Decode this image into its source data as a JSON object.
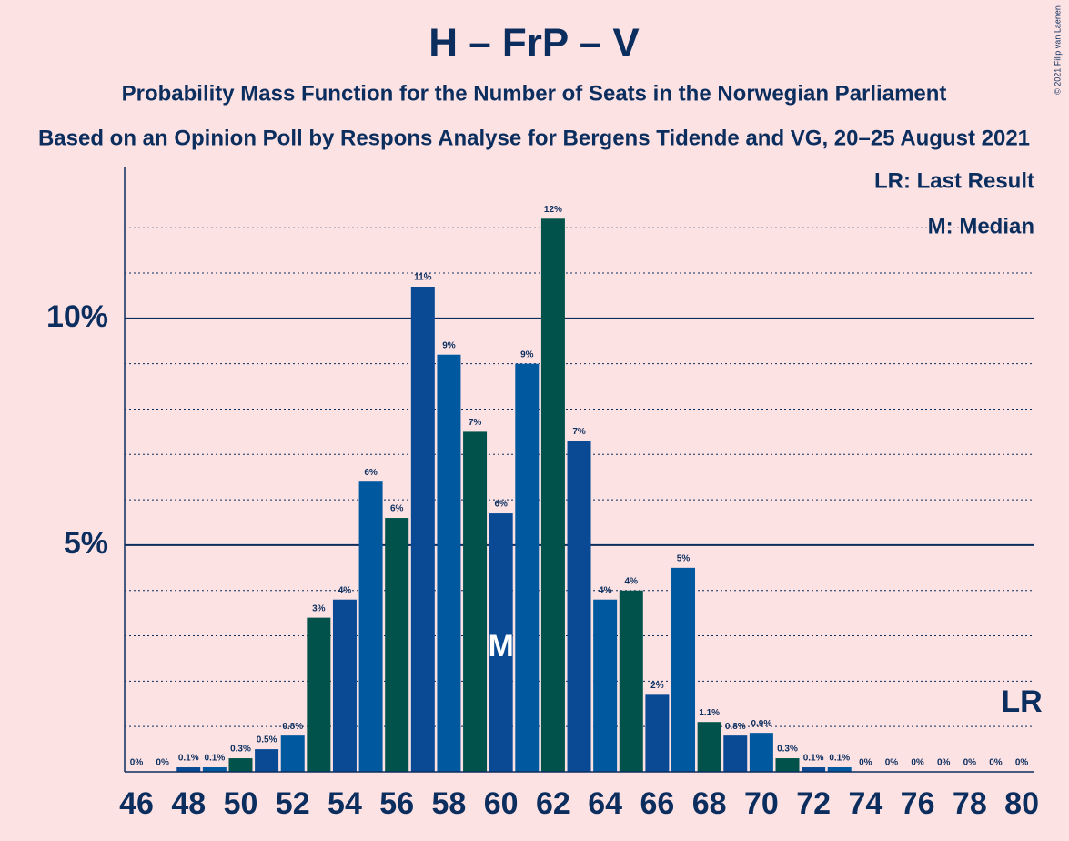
{
  "chart_data": {
    "type": "bar",
    "title": "H – FrP – V",
    "subtitle": "Probability Mass Function for the Number of Seats in the Norwegian Parliament",
    "subtitle2": "Based on an Opinion Poll by Respons Analyse for Bergens Tidende and VG, 20–25 August 2021",
    "copyright": "© 2021 Filip van Laenen",
    "legend": [
      "LR: Last Result",
      "M: Median"
    ],
    "categories": [
      46,
      null,
      48,
      null,
      50,
      null,
      52,
      null,
      54,
      null,
      56,
      null,
      58,
      null,
      60,
      null,
      62,
      null,
      64,
      null,
      66,
      null,
      68,
      null,
      70,
      null,
      72,
      null,
      74,
      null,
      76,
      null,
      78,
      null,
      80
    ],
    "values": [
      0,
      0,
      0.1,
      0.1,
      0.3,
      0.5,
      0.8,
      3.4,
      3.8,
      6.4,
      5.6,
      10.7,
      9.2,
      7.5,
      5.7,
      9.0,
      12.2,
      7.3,
      3.8,
      4.0,
      1.7,
      4.5,
      1.1,
      0.8,
      0.86,
      0.3,
      0.1,
      0.1,
      0,
      0,
      0,
      0,
      0,
      0,
      0
    ],
    "value_labels": [
      "0%",
      "0%",
      "0.1%",
      "0.1%",
      "0.3%",
      "0.5%",
      "0.8%",
      "3%",
      "4%",
      "6%",
      "6%",
      "11%",
      "9%",
      "7%",
      "6%",
      "9%",
      "12%",
      "7%",
      "4%",
      "4%",
      "2%",
      "5%",
      "1.1%",
      "0.8%",
      "0.9%",
      "0.3%",
      "0.1%",
      "0.1%",
      "0%",
      "0%",
      "0%",
      "0%",
      "0%",
      "0%",
      "0%"
    ],
    "colors": [
      "#0a4a94",
      "#00589f",
      "#00524a"
    ],
    "ylim": [
      0,
      13.35
    ],
    "yticks": [
      {
        "value": 5,
        "label": "5%"
      },
      {
        "value": 10,
        "label": "10%"
      }
    ],
    "minor_yticks": [
      1,
      2,
      3,
      4,
      6,
      7,
      8,
      9,
      11,
      12
    ],
    "median_index": 14,
    "median_label": "M",
    "last_result_index": 34,
    "last_result_label": "LR"
  }
}
